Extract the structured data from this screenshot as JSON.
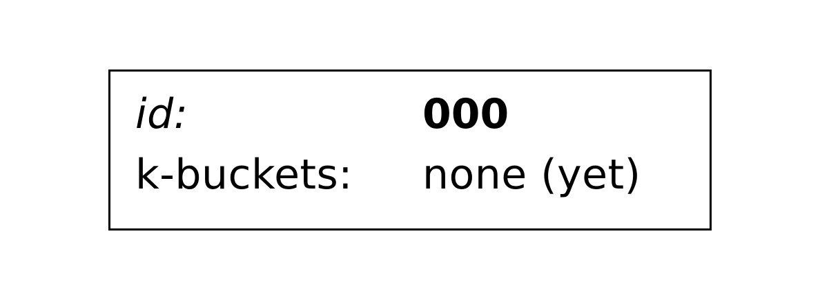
{
  "node": {
    "id_label": "id:",
    "id_value": "000",
    "kbuckets_label": "k-buckets:",
    "kbuckets_value": "none (yet)"
  }
}
